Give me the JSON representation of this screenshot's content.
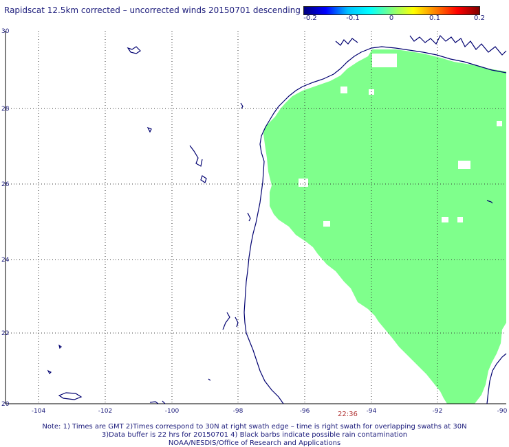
{
  "title": "Rapidscat 12.5km corrected – uncorrected winds 20150701 descending",
  "colorbar": {
    "labels": [
      "-0.2",
      "-0.1",
      "0",
      "0.1",
      "0.2"
    ],
    "values": [
      -0.2,
      -0.1,
      0,
      0.1,
      0.2
    ]
  },
  "axes": {
    "lon_ticks": [
      "-104",
      "-102",
      "-100",
      "-98",
      "-96",
      "-94",
      "-92",
      "-90"
    ],
    "lat_ticks": [
      "30",
      "28",
      "26",
      "24",
      "22",
      "20"
    ],
    "lon_range": [
      -105,
      -90
    ],
    "lat_range": [
      20,
      30
    ],
    "grid": "dotted"
  },
  "swath_time": "22:36",
  "notes": [
    "Note: 1) Times are GMT 2)Times correspond to 30N at right swath edge – time is right swath for overlapping swaths at 30N",
    "3)Data buffer is 22 hrs for 20150701 4) Black barbs indicate possible rain contamination",
    "NOAA/NESDIS/Office of Research and Applications"
  ],
  "colors": {
    "swath": "#7fff8c",
    "coast": "#000070",
    "grid": "#333333",
    "text": "#1a1a7a"
  }
}
